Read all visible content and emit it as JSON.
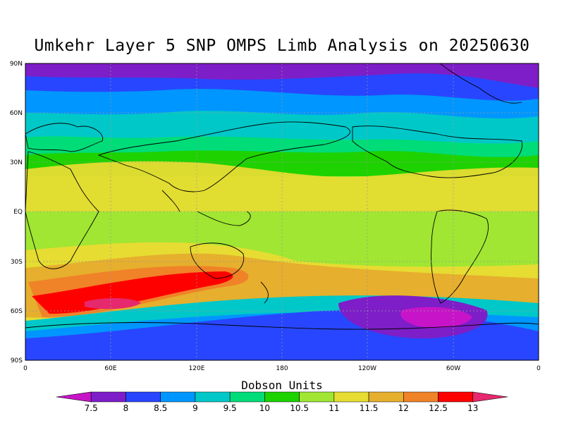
{
  "title": "Umkehr Layer 5 SNP OMPS Limb Analysis on 20250630",
  "lat_labels": [
    "90N",
    "60N",
    "30N",
    "EQ",
    "30S",
    "60S",
    "90S"
  ],
  "lon_labels": [
    "0",
    "60E",
    "120E",
    "180",
    "120W",
    "60W",
    "0"
  ],
  "colorbar": {
    "title": "Dobson Units",
    "ticks": [
      "7.5",
      "8",
      "8.5",
      "9",
      "9.5",
      "10",
      "10.5",
      "11",
      "11.5",
      "12",
      "12.5",
      "13"
    ],
    "colors": [
      "#c814c8",
      "#7d1ec8",
      "#2846ff",
      "#0096ff",
      "#00c8c8",
      "#00dc78",
      "#1ed200",
      "#a0e632",
      "#e6dc32",
      "#e6af2d",
      "#f08228",
      "#ff0000",
      "#e6286e"
    ]
  }
}
